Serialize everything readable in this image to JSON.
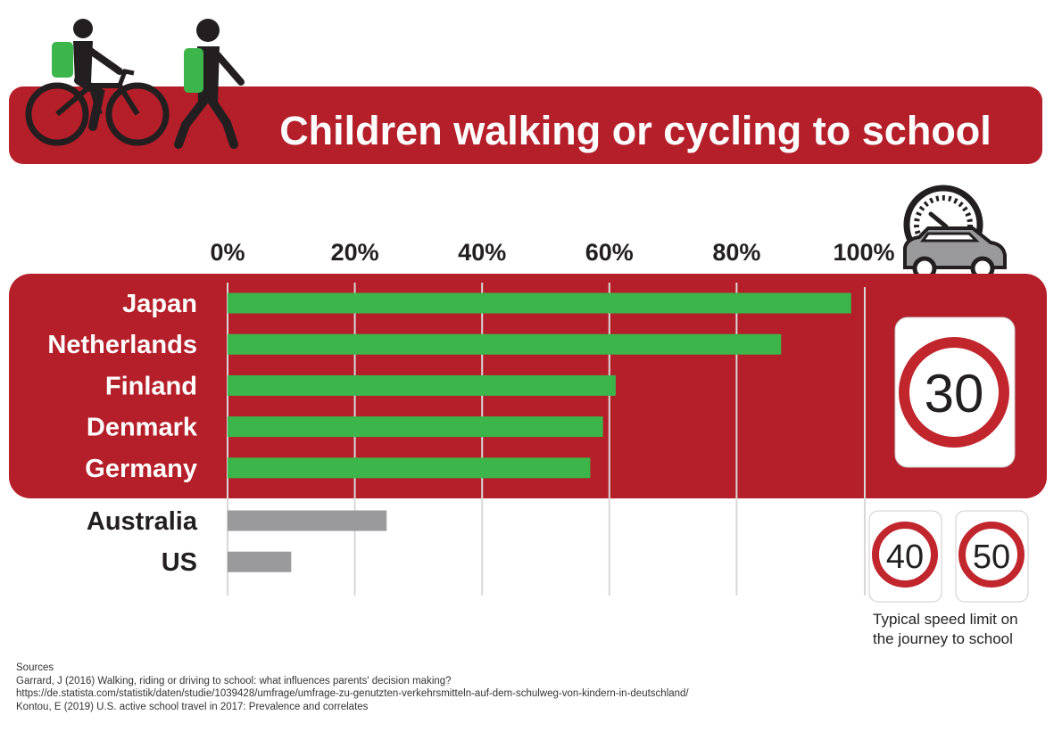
{
  "colors": {
    "banner": "#b51f2a",
    "green_bar": "#3cb54a",
    "grey_bar": "#9a9a9c",
    "backpack": "#3cb54a",
    "dark": "#231f20",
    "sign_ring": "#c1262d"
  },
  "icons": [
    "cyclist-icon",
    "walker-icon",
    "speedometer-icon",
    "car-icon"
  ],
  "chart_data": {
    "type": "bar",
    "orientation": "horizontal",
    "title": "Children walking or cycling to school",
    "xlabel": "",
    "ylabel": "",
    "xlim": [
      0,
      100
    ],
    "x_ticks": [
      0,
      20,
      40,
      60,
      80,
      100
    ],
    "x_tick_labels": [
      "0%",
      "20%",
      "40%",
      "60%",
      "80%",
      "100%"
    ],
    "grid": true,
    "categories": [
      "Japan",
      "Netherlands",
      "Finland",
      "Denmark",
      "Germany",
      "Australia",
      "US"
    ],
    "values": [
      98,
      87,
      61,
      59,
      57,
      25,
      10
    ],
    "highlight_group": [
      "Japan",
      "Netherlands",
      "Finland",
      "Denmark",
      "Germany"
    ],
    "other_group": [
      "Australia",
      "US"
    ]
  },
  "speed_signs": {
    "main": "30",
    "others": [
      "40",
      "50"
    ],
    "caption_line1": "Typical speed limit on",
    "caption_line2": "the journey to school"
  },
  "sources": {
    "heading": "Sources",
    "lines": [
      "Garrard, J (2016) Walking, riding or driving to school: what influences parents' decision making?",
      "https://de.statista.com/statistik/daten/studie/1039428/umfrage/umfrage-zu-genutzten-verkehrsmitteln-auf-dem-schulweg-von-kindern-in-deutschland/",
      "Kontou, E (2019) U.S. active school travel in 2017: Prevalence and correlates"
    ]
  }
}
